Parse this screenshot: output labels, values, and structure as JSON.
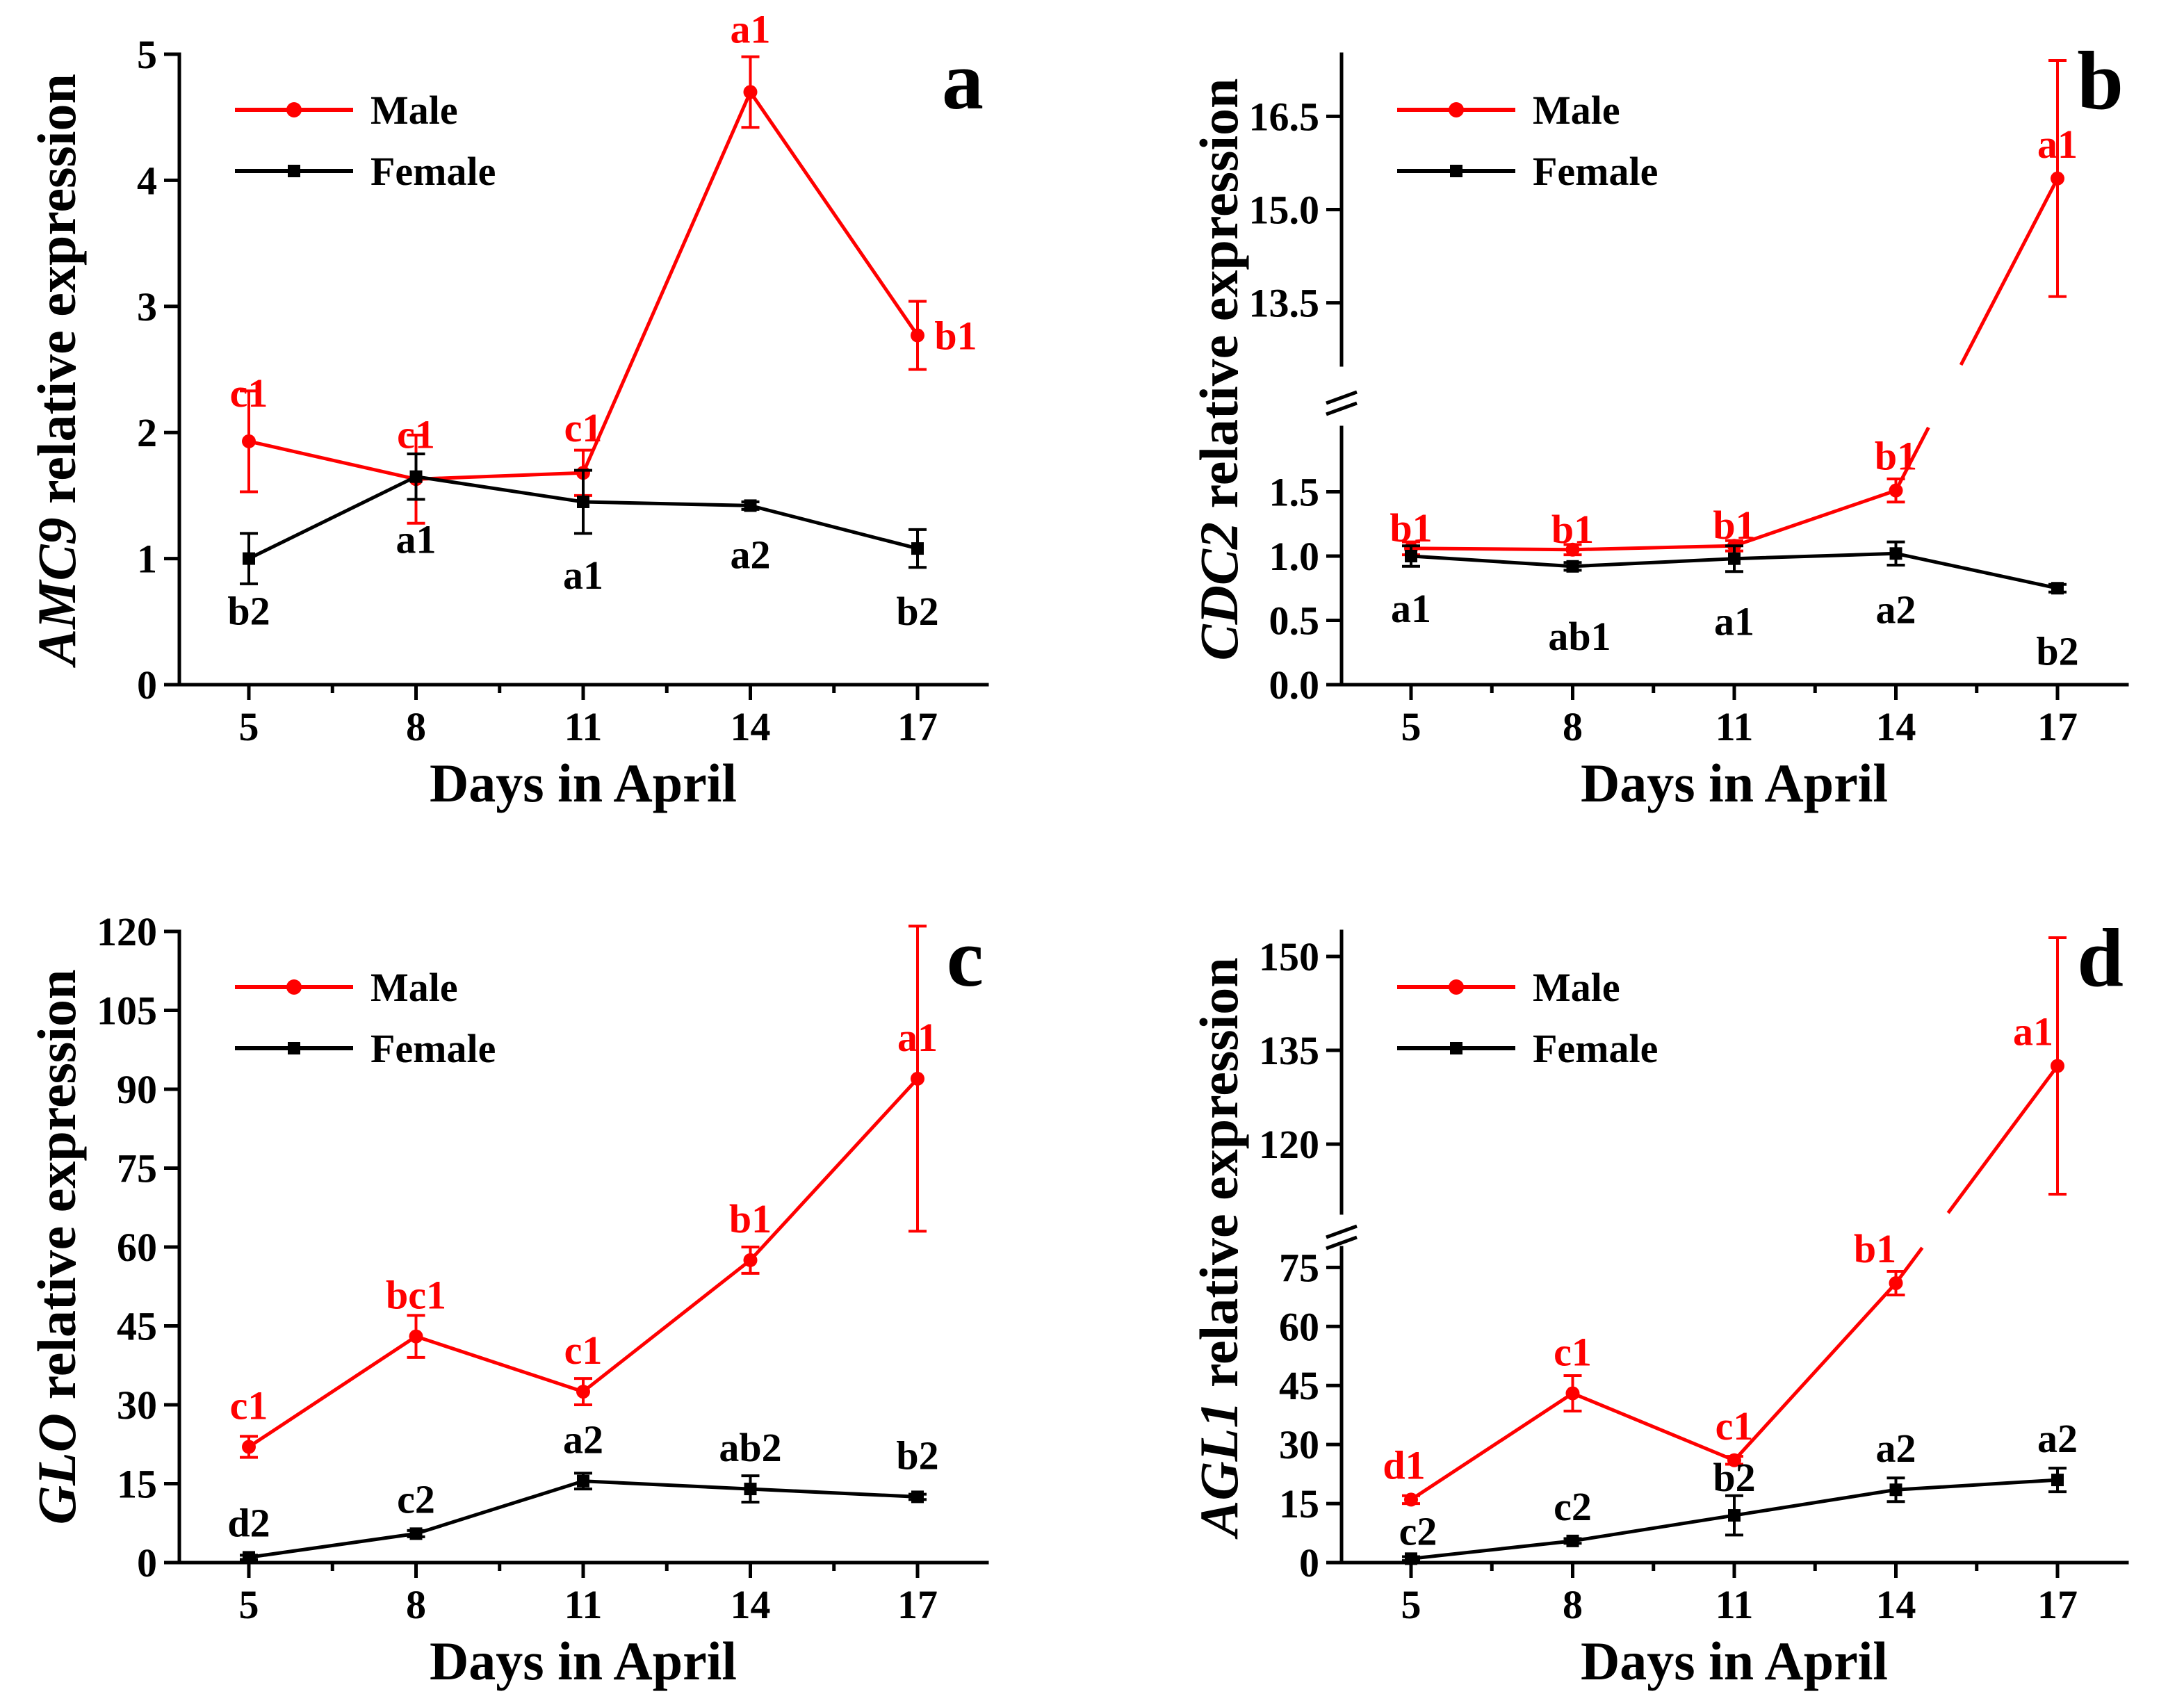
{
  "colors": {
    "male": "#ff0000",
    "female": "#000000"
  },
  "chart_data": [
    {
      "panel": "a",
      "type": "line",
      "ylabel_gene": "AMC9",
      "ylabel_rest": " relative expression",
      "xlabel": "Days in April",
      "x": [
        5,
        8,
        11,
        14,
        17
      ],
      "xticks": [
        "5",
        "8",
        "11",
        "14",
        "17"
      ],
      "ylim": [
        0,
        5
      ],
      "yticks": [
        0,
        1,
        2,
        3,
        4,
        5
      ],
      "ytick_labels": [
        "0",
        "1",
        "2",
        "3",
        "4",
        "5"
      ],
      "break": null,
      "series": [
        {
          "name": "Male",
          "values": [
            1.93,
            1.63,
            1.68,
            4.7,
            2.77
          ],
          "errors": [
            0.4,
            0.35,
            0.18,
            0.28,
            0.27
          ],
          "annotations": [
            "c1",
            "c1",
            "c1",
            "a1",
            "b1"
          ]
        },
        {
          "name": "Female",
          "values": [
            1.0,
            1.65,
            1.45,
            1.42,
            1.08
          ],
          "errors": [
            0.2,
            0.18,
            0.25,
            0.03,
            0.15
          ],
          "annotations": [
            "b2",
            "a1",
            "a1",
            "a2",
            "b2"
          ]
        }
      ]
    },
    {
      "panel": "b",
      "type": "line",
      "ylabel_gene": "CDC2",
      "ylabel_rest": " relative expression",
      "xlabel": "Days in April",
      "x": [
        5,
        8,
        11,
        14,
        17
      ],
      "xticks": [
        "5",
        "8",
        "11",
        "14",
        "17"
      ],
      "ylim": [
        0,
        17.5
      ],
      "yticks": [
        0,
        0.5,
        1.0,
        1.5,
        13.5,
        15.0,
        16.5
      ],
      "ytick_labels": [
        "0.0",
        "0.5",
        "1.0",
        "1.5",
        "13.5",
        "15.0",
        "16.5"
      ],
      "break": {
        "lower_max": 2.0,
        "upper_min": 12.5,
        "upper_max": 17.5
      },
      "series": [
        {
          "name": "Male",
          "values": [
            1.06,
            1.05,
            1.08,
            1.51,
            15.5
          ],
          "errors": [
            0.05,
            0.04,
            0.04,
            0.09,
            1.9
          ],
          "annotations": [
            "b1",
            "b1",
            "b1",
            "b1",
            "a1"
          ]
        },
        {
          "name": "Female",
          "values": [
            1.0,
            0.92,
            0.98,
            1.02,
            0.75
          ],
          "errors": [
            0.08,
            0.03,
            0.1,
            0.09,
            0.03
          ],
          "annotations": [
            "a1",
            "ab1",
            "a1",
            "a2",
            "b2"
          ]
        }
      ]
    },
    {
      "panel": "c",
      "type": "line",
      "ylabel_gene": "GLO",
      "ylabel_rest": " relative expression",
      "xlabel": "Days in April",
      "x": [
        5,
        8,
        11,
        14,
        17
      ],
      "xticks": [
        "5",
        "8",
        "11",
        "14",
        "17"
      ],
      "ylim": [
        0,
        120
      ],
      "yticks": [
        0,
        15,
        30,
        45,
        60,
        75,
        90,
        105,
        120
      ],
      "ytick_labels": [
        "0",
        "15",
        "30",
        "45",
        "60",
        "75",
        "90",
        "105",
        "120"
      ],
      "break": null,
      "series": [
        {
          "name": "Male",
          "values": [
            22,
            43,
            32.5,
            57.5,
            92
          ],
          "errors": [
            2,
            4,
            2.5,
            2.5,
            29
          ],
          "annotations": [
            "c1",
            "bc1",
            "c1",
            "b1",
            "a1"
          ]
        },
        {
          "name": "Female",
          "values": [
            1,
            5.5,
            15.5,
            14,
            12.5
          ],
          "errors": [
            0.4,
            0.6,
            1.5,
            2.5,
            0.5
          ],
          "annotations": [
            "d2",
            "c2",
            "a2",
            "ab2",
            "b2"
          ]
        }
      ]
    },
    {
      "panel": "d",
      "type": "line",
      "ylabel_gene": "AGL1",
      "ylabel_rest": " relative expression",
      "xlabel": "Days in April",
      "x": [
        5,
        8,
        11,
        14,
        17
      ],
      "xticks": [
        "5",
        "8",
        "11",
        "14",
        "17"
      ],
      "ylim": [
        0,
        154
      ],
      "yticks": [
        0,
        15,
        30,
        45,
        60,
        75,
        120,
        135,
        150
      ],
      "ytick_labels": [
        "0",
        "15",
        "30",
        "45",
        "60",
        "75",
        "120",
        "135",
        "150"
      ],
      "break": {
        "lower_max": 80,
        "upper_min": 109,
        "upper_max": 154
      },
      "series": [
        {
          "name": "Male",
          "values": [
            16,
            43,
            26,
            71,
            132.5
          ],
          "errors": [
            1,
            4.5,
            1,
            3,
            20.5
          ],
          "annotations": [
            "d1",
            "c1",
            "c1",
            "b1",
            "a1"
          ]
        },
        {
          "name": "Female",
          "values": [
            1,
            5.5,
            12,
            18.5,
            21
          ],
          "errors": [
            0.5,
            0.6,
            5,
            3,
            3
          ],
          "annotations": [
            "c2",
            "c2",
            "b2",
            "a2",
            "a2"
          ]
        }
      ]
    }
  ]
}
